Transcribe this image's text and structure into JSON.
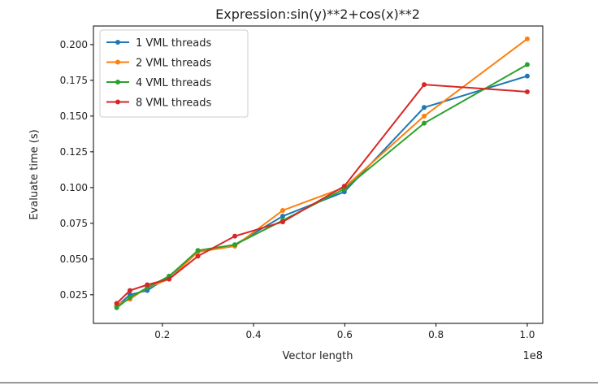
{
  "chart_data": {
    "type": "line",
    "title": "Expression:sin(y)**2+cos(x)**2",
    "xlabel": "Vector length",
    "ylabel": "Evaluate time (s)",
    "x_offset_label": "1e8",
    "xlim": [
      0.049,
      1.034
    ],
    "ylim": [
      0.005,
      0.213
    ],
    "xticks": [
      0.2,
      0.4,
      0.6,
      0.8,
      1.0
    ],
    "xtick_labels": [
      "0.2",
      "0.4",
      "0.6",
      "0.8",
      "1.0"
    ],
    "yticks": [
      0.025,
      0.05,
      0.075,
      0.1,
      0.125,
      0.15,
      0.175,
      0.2
    ],
    "ytick_labels": [
      "0.025",
      "0.050",
      "0.075",
      "0.100",
      "0.125",
      "0.150",
      "0.175",
      "0.200"
    ],
    "grid": false,
    "legend_position": "top-left",
    "x": [
      0.1,
      0.129,
      0.167,
      0.215,
      0.278,
      0.359,
      0.464,
      0.599,
      0.774,
      1.0
    ],
    "series": [
      {
        "name": "1 VML threads",
        "color": "#1f77b4",
        "values": [
          0.017,
          0.025,
          0.028,
          0.038,
          0.055,
          0.06,
          0.08,
          0.097,
          0.156,
          0.178
        ]
      },
      {
        "name": "2 VML threads",
        "color": "#ff7f0e",
        "values": [
          0.018,
          0.022,
          0.03,
          0.036,
          0.055,
          0.059,
          0.084,
          0.1,
          0.15,
          0.204
        ]
      },
      {
        "name": "4 VML threads",
        "color": "#2ca02c",
        "values": [
          0.016,
          0.023,
          0.03,
          0.038,
          0.056,
          0.06,
          0.077,
          0.099,
          0.145,
          0.186
        ]
      },
      {
        "name": "8 VML threads",
        "color": "#d62728",
        "values": [
          0.019,
          0.028,
          0.032,
          0.036,
          0.052,
          0.066,
          0.076,
          0.101,
          0.172,
          0.167
        ]
      }
    ]
  }
}
